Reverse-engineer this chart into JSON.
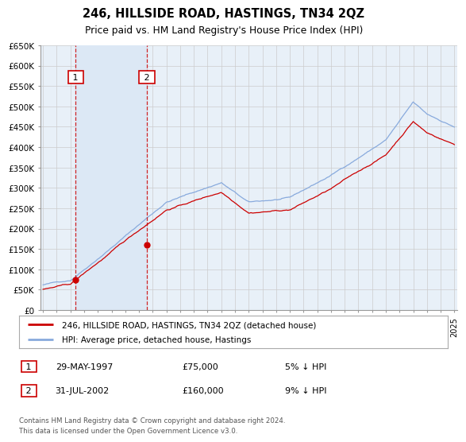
{
  "title": "246, HILLSIDE ROAD, HASTINGS, TN34 2QZ",
  "subtitle": "Price paid vs. HM Land Registry's House Price Index (HPI)",
  "legend_line1": "246, HILLSIDE ROAD, HASTINGS, TN34 2QZ (detached house)",
  "legend_line2": "HPI: Average price, detached house, Hastings",
  "sale1_date": 1997.38,
  "sale1_price": 75000,
  "sale2_date": 2002.58,
  "sale2_price": 160000,
  "ylim": [
    0,
    650000
  ],
  "yticks": [
    0,
    50000,
    100000,
    150000,
    200000,
    250000,
    300000,
    350000,
    400000,
    450000,
    500000,
    550000,
    600000,
    650000
  ],
  "property_color": "#cc0000",
  "hpi_color": "#88aadd",
  "shade_color": "#dce8f5",
  "grid_color": "#cccccc",
  "bg_color": "#e8f0f8",
  "footnote": "Contains HM Land Registry data © Crown copyright and database right 2024.\nThis data is licensed under the Open Government Licence v3.0.",
  "footnote2_date1": "29-MAY-1997",
  "footnote2_price1": "£75,000",
  "footnote2_pct1": "5% ↓ HPI",
  "footnote2_date2": "31-JUL-2002",
  "footnote2_price2": "£160,000",
  "footnote2_pct2": "9% ↓ HPI"
}
